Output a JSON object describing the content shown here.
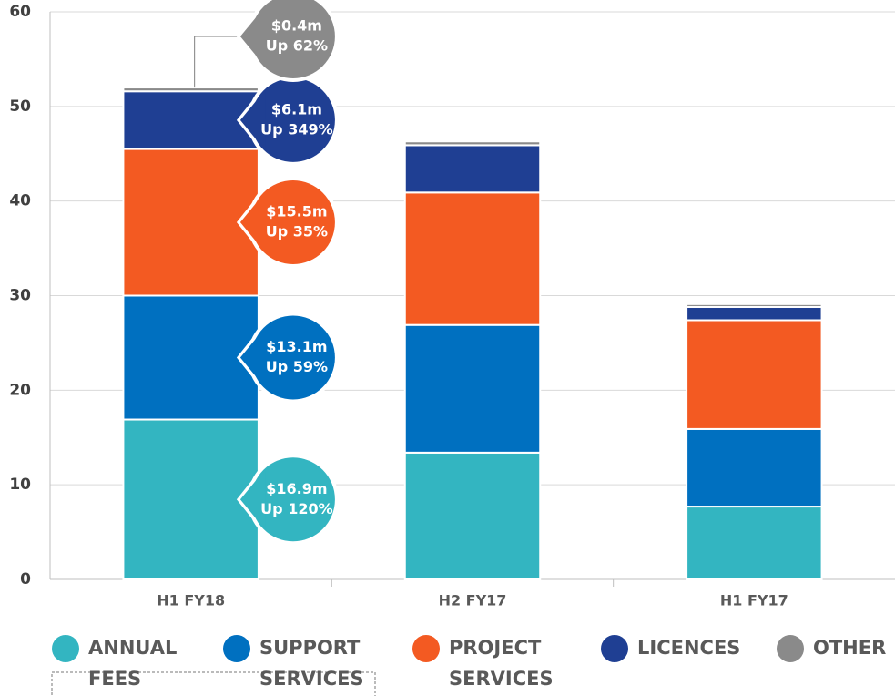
{
  "chart_data": {
    "type": "stacked_bar",
    "categories": [
      "H1 FY18",
      "H2 FY17",
      "H1 FY17"
    ],
    "series": [
      {
        "name": "ANNUAL FEES",
        "color": "#33b5c1",
        "values": [
          16.9,
          13.4,
          7.7
        ],
        "callout": {
          "label": "$16.9m",
          "change": "Up 120%"
        }
      },
      {
        "name": "SUPPORT SERVICES",
        "color": "#0070c0",
        "values": [
          13.1,
          13.5,
          8.2
        ],
        "callout": {
          "label": "$13.1m",
          "change": "Up 59%"
        }
      },
      {
        "name": "PROJECT SERVICES",
        "color": "#f35a22",
        "values": [
          15.5,
          14.0,
          11.5
        ],
        "callout": {
          "label": "$15.5m",
          "change": "Up 35%"
        }
      },
      {
        "name": "LICENCES",
        "color": "#1f3f93",
        "values": [
          6.1,
          5.0,
          1.4
        ],
        "callout": {
          "label": "$6.1m",
          "change": "Up 349%"
        }
      },
      {
        "name": "OTHER",
        "color": "#8a8a8a",
        "values": [
          0.4,
          0.4,
          0.3
        ],
        "callout": {
          "label": "$0.4m",
          "change": "Up 62%"
        }
      }
    ],
    "ylim": [
      0,
      60
    ],
    "yticks": [
      0,
      10,
      20,
      30,
      40,
      50,
      60
    ],
    "grid": true
  }
}
